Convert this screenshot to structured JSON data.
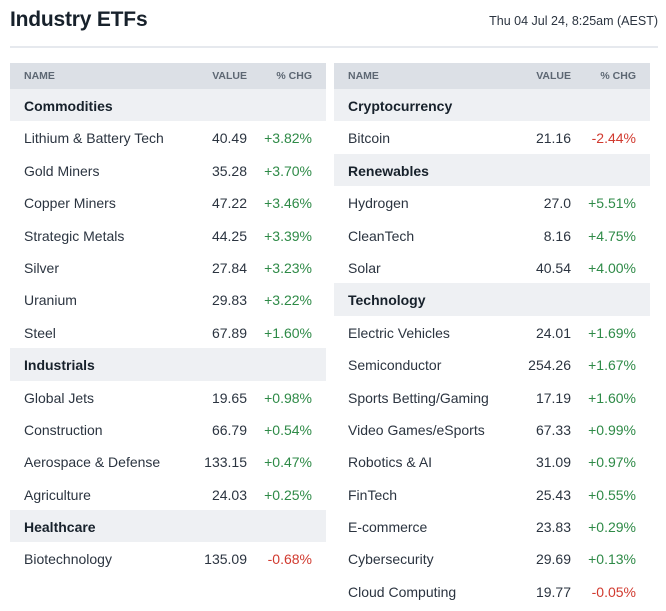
{
  "header": {
    "title": "Industry ETFs",
    "timestamp": "Thu 04 Jul 24, 8:25am (AEST)"
  },
  "columns": {
    "name": "NAME",
    "value": "VALUE",
    "change": "% CHG"
  },
  "colors": {
    "positive": "#2e8a47",
    "negative": "#d13a2f",
    "section_bg": "#eef0f3",
    "header_bg": "#dce0e6"
  },
  "left_table": {
    "sections": [
      {
        "name": "Commodities",
        "rows": [
          {
            "name": "Lithium & Battery Tech",
            "value": "40.49",
            "change": "+3.82%",
            "direction": "up"
          },
          {
            "name": "Gold Miners",
            "value": "35.28",
            "change": "+3.70%",
            "direction": "up"
          },
          {
            "name": "Copper Miners",
            "value": "47.22",
            "change": "+3.46%",
            "direction": "up"
          },
          {
            "name": "Strategic Metals",
            "value": "44.25",
            "change": "+3.39%",
            "direction": "up"
          },
          {
            "name": "Silver",
            "value": "27.84",
            "change": "+3.23%",
            "direction": "up"
          },
          {
            "name": "Uranium",
            "value": "29.83",
            "change": "+3.22%",
            "direction": "up"
          },
          {
            "name": "Steel",
            "value": "67.89",
            "change": "+1.60%",
            "direction": "up"
          }
        ]
      },
      {
        "name": "Industrials",
        "rows": [
          {
            "name": "Global Jets",
            "value": "19.65",
            "change": "+0.98%",
            "direction": "up"
          },
          {
            "name": "Construction",
            "value": "66.79",
            "change": "+0.54%",
            "direction": "up"
          },
          {
            "name": "Aerospace & Defense",
            "value": "133.15",
            "change": "+0.47%",
            "direction": "up"
          },
          {
            "name": "Agriculture",
            "value": "24.03",
            "change": "+0.25%",
            "direction": "up"
          }
        ]
      },
      {
        "name": "Healthcare",
        "rows": [
          {
            "name": "Biotechnology",
            "value": "135.09",
            "change": "-0.68%",
            "direction": "down"
          }
        ]
      }
    ]
  },
  "right_table": {
    "sections": [
      {
        "name": "Cryptocurrency",
        "rows": [
          {
            "name": "Bitcoin",
            "value": "21.16",
            "change": "-2.44%",
            "direction": "down"
          }
        ]
      },
      {
        "name": "Renewables",
        "rows": [
          {
            "name": "Hydrogen",
            "value": "27.0",
            "change": "+5.51%",
            "direction": "up"
          },
          {
            "name": "CleanTech",
            "value": "8.16",
            "change": "+4.75%",
            "direction": "up"
          },
          {
            "name": "Solar",
            "value": "40.54",
            "change": "+4.00%",
            "direction": "up"
          }
        ]
      },
      {
        "name": "Technology",
        "rows": [
          {
            "name": "Electric Vehicles",
            "value": "24.01",
            "change": "+1.69%",
            "direction": "up"
          },
          {
            "name": "Semiconductor",
            "value": "254.26",
            "change": "+1.67%",
            "direction": "up"
          },
          {
            "name": "Sports Betting/Gaming",
            "value": "17.19",
            "change": "+1.60%",
            "direction": "up"
          },
          {
            "name": "Video Games/eSports",
            "value": "67.33",
            "change": "+0.99%",
            "direction": "up"
          },
          {
            "name": "Robotics & AI",
            "value": "31.09",
            "change": "+0.97%",
            "direction": "up"
          },
          {
            "name": "FinTech",
            "value": "25.43",
            "change": "+0.55%",
            "direction": "up"
          },
          {
            "name": "E-commerce",
            "value": "23.83",
            "change": "+0.29%",
            "direction": "up"
          },
          {
            "name": "Cybersecurity",
            "value": "29.69",
            "change": "+0.13%",
            "direction": "up"
          },
          {
            "name": "Cloud Computing",
            "value": "19.77",
            "change": "-0.05%",
            "direction": "down"
          }
        ]
      }
    ]
  }
}
